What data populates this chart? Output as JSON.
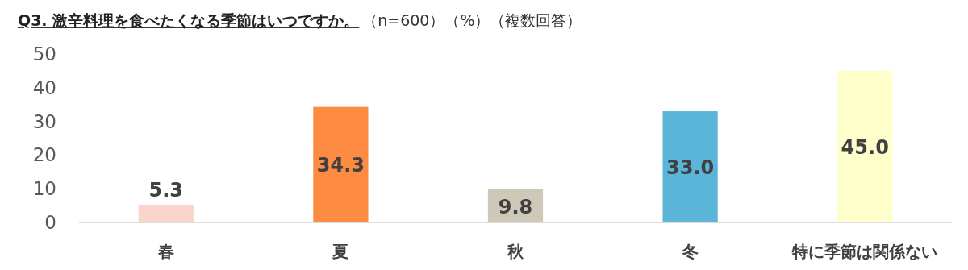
{
  "chart_data": {
    "type": "bar",
    "title": "Q3. 激辛料理を食べたくなる季節はいつですか。",
    "subtitle": "（n=600）（%）（複数回答）",
    "categories": [
      "春",
      "夏",
      "秋",
      "冬",
      "特に季節は関係ない"
    ],
    "values": [
      5.3,
      34.3,
      9.8,
      33.0,
      45.0
    ],
    "colors": [
      "#fbd4cc",
      "#fd8c42",
      "#cdc8b8",
      "#5bb5d9",
      "#ffffcc"
    ],
    "value_labels": [
      "5.3",
      "34.3",
      "9.8",
      "33.0",
      "45.0"
    ],
    "ylim": [
      0,
      50
    ],
    "yticks": [
      0,
      10,
      20,
      30,
      40,
      50
    ],
    "grid": false
  }
}
